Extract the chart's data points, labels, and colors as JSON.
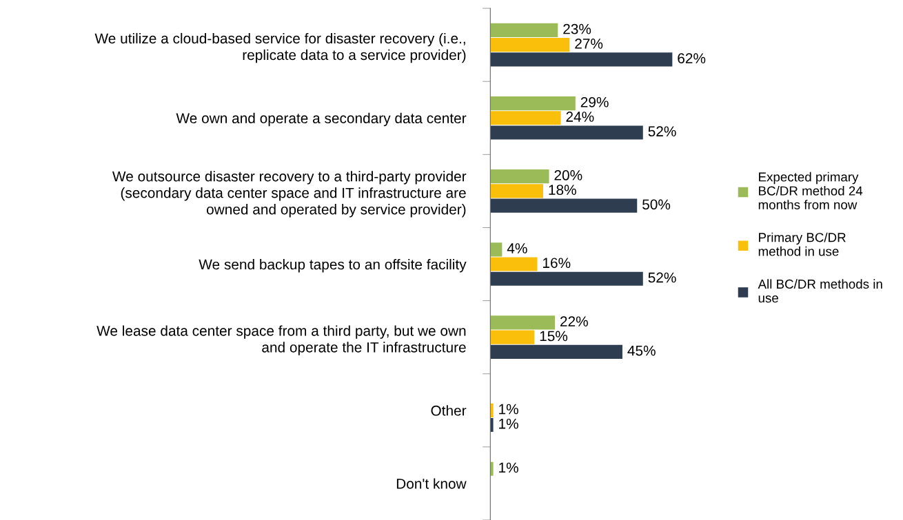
{
  "chart_data": {
    "type": "bar",
    "orientation": "horizontal",
    "categories": [
      "We utilize a cloud-based service for disaster recovery (i.e.,\nreplicate data to a service provider)",
      "We own and operate a secondary data center",
      "We outsource disaster recovery to a third-party provider\n(secondary data center space and IT infrastructure are\nowned and operated by service provider)",
      "We send backup tapes to an offsite facility",
      "We lease data center space from a third party, but we own\nand operate the IT infrastructure",
      "Other",
      "Don't know"
    ],
    "series": [
      {
        "name": "Expected primary\nBC/DR method 24\nmonths from now",
        "color": "#9bbb59",
        "values": [
          23,
          29,
          20,
          4,
          22,
          null,
          1
        ],
        "value_labels": [
          "23%",
          "29%",
          "20%",
          "4%",
          "22%",
          null,
          "1%"
        ]
      },
      {
        "name": "Primary BC/DR\nmethod in use",
        "color": "#f9bf0b",
        "values": [
          27,
          24,
          18,
          16,
          15,
          1,
          null
        ],
        "value_labels": [
          "27%",
          "24%",
          "18%",
          "16%",
          "15%",
          "1%",
          null
        ]
      },
      {
        "name": "All BC/DR methods in\nuse",
        "color": "#2e3d50",
        "values": [
          62,
          52,
          50,
          52,
          45,
          1,
          null
        ],
        "value_labels": [
          "62%",
          "52%",
          "50%",
          "52%",
          "45%",
          "1%",
          null
        ]
      }
    ],
    "tick_labels": "y",
    "grid": false,
    "legend": "right"
  }
}
